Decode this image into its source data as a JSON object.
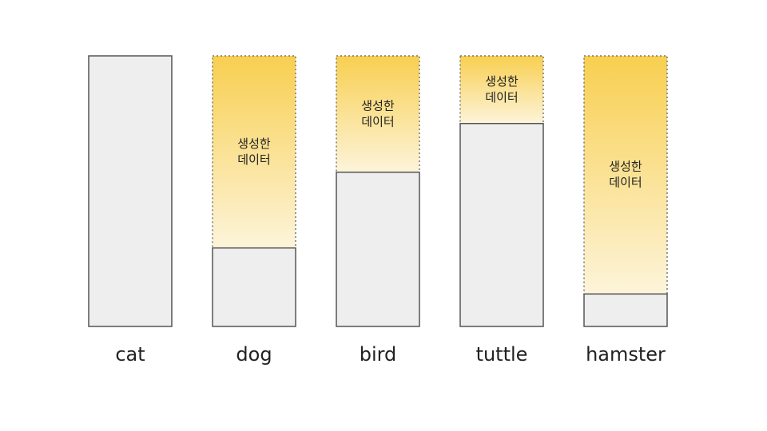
{
  "chart_data": {
    "type": "stacked-bar",
    "categories": [
      "cat",
      "dog",
      "bird",
      "tuttle",
      "hamster"
    ],
    "series": [
      {
        "color": "#eeeeee",
        "values": [
          100,
          29,
          57,
          75,
          12
        ]
      },
      {
        "color": "#f8cf50",
        "values": [
          0,
          71,
          43,
          25,
          88
        ]
      }
    ],
    "generated_label": [
      "생성한",
      "데이터"
    ],
    "ylim": [
      0,
      100
    ]
  }
}
